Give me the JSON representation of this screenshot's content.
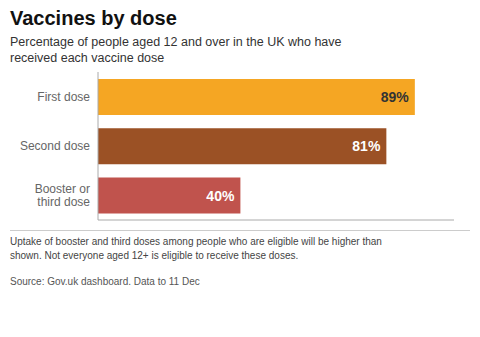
{
  "chart_data": {
    "type": "bar",
    "title": "Vaccines by dose",
    "subtitle": "Percentage of people aged 12 and over in the UK who have\nreceived each vaccine dose",
    "categories": [
      "First dose",
      "Second dose",
      "Booster or\nthird dose"
    ],
    "values": [
      89,
      81,
      40
    ],
    "value_labels": [
      "89%",
      "81%",
      "40%"
    ],
    "data_labels": true,
    "colors": [
      "#F5A623",
      "#9B5125",
      "#C0534D"
    ],
    "orientation": "horizontal",
    "xlim": [
      0,
      100
    ],
    "tick_labels": "y",
    "annotations": [
      "Uptake of booster and third doses among people who are eligible will be higher than\nshown. Not everyone aged 12+ is eligible to receive these doses.",
      "Source: Gov.uk dashboard. Data to 11 Dec"
    ]
  }
}
